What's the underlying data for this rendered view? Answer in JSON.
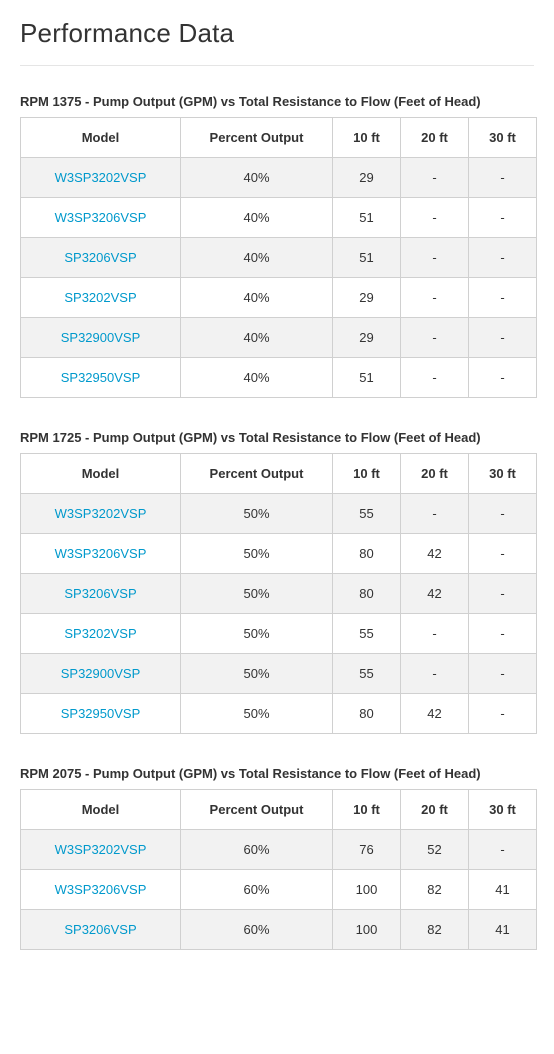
{
  "page_title": "Performance Data",
  "link_color": "#0099cc",
  "text_color": "#333333",
  "border_color": "#d0d0d0",
  "row_alt_bg": "#f2f2f2",
  "row_bg": "#ffffff",
  "columns": [
    "Model",
    "Percent Output",
    "10 ft",
    "20 ft",
    "30 ft"
  ],
  "tables": [
    {
      "title": "RPM 1375 - Pump Output (GPM) vs Total Resistance to Flow (Feet of Head)",
      "rows": [
        {
          "model": "W3SP3202VSP",
          "pct": "40%",
          "v10": "29",
          "v20": "-",
          "v30": "-"
        },
        {
          "model": "W3SP3206VSP",
          "pct": "40%",
          "v10": "51",
          "v20": "-",
          "v30": "-"
        },
        {
          "model": "SP3206VSP",
          "pct": "40%",
          "v10": "51",
          "v20": "-",
          "v30": "-"
        },
        {
          "model": "SP3202VSP",
          "pct": "40%",
          "v10": "29",
          "v20": "-",
          "v30": "-"
        },
        {
          "model": "SP32900VSP",
          "pct": "40%",
          "v10": "29",
          "v20": "-",
          "v30": "-"
        },
        {
          "model": "SP32950VSP",
          "pct": "40%",
          "v10": "51",
          "v20": "-",
          "v30": "-"
        }
      ]
    },
    {
      "title": "RPM 1725 - Pump Output (GPM) vs Total Resistance to Flow (Feet of Head)",
      "rows": [
        {
          "model": "W3SP3202VSP",
          "pct": "50%",
          "v10": "55",
          "v20": "-",
          "v30": "-"
        },
        {
          "model": "W3SP3206VSP",
          "pct": "50%",
          "v10": "80",
          "v20": "42",
          "v30": "-"
        },
        {
          "model": "SP3206VSP",
          "pct": "50%",
          "v10": "80",
          "v20": "42",
          "v30": "-"
        },
        {
          "model": "SP3202VSP",
          "pct": "50%",
          "v10": "55",
          "v20": "-",
          "v30": "-"
        },
        {
          "model": "SP32900VSP",
          "pct": "50%",
          "v10": "55",
          "v20": "-",
          "v30": "-"
        },
        {
          "model": "SP32950VSP",
          "pct": "50%",
          "v10": "80",
          "v20": "42",
          "v30": "-"
        }
      ]
    },
    {
      "title": "RPM 2075 - Pump Output (GPM) vs Total Resistance to Flow (Feet of Head)",
      "rows": [
        {
          "model": "W3SP3202VSP",
          "pct": "60%",
          "v10": "76",
          "v20": "52",
          "v30": "-"
        },
        {
          "model": "W3SP3206VSP",
          "pct": "60%",
          "v10": "100",
          "v20": "82",
          "v30": "41"
        },
        {
          "model": "SP3206VSP",
          "pct": "60%",
          "v10": "100",
          "v20": "82",
          "v30": "41"
        }
      ]
    }
  ]
}
